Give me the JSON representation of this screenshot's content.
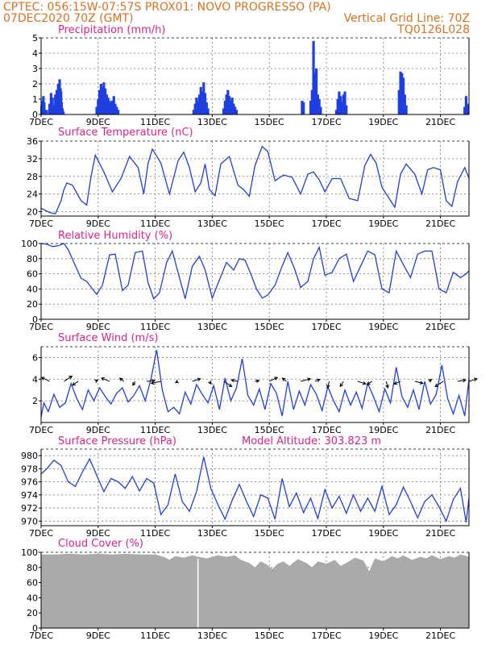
{
  "header": {
    "line1_left": "CPTEC:   056:15W-07:57S   PROX01: NOVO PROGRESSO (PA)",
    "line2_left": "07DEC2020 70Z (GMT)",
    "line2_right": "Vertical Grid Line: 70Z",
    "line3_right": "TQ0126L028"
  },
  "x_axis": {
    "tick_labels": [
      "7DEC",
      "9DEC",
      "11DEC",
      "13DEC",
      "15DEC",
      "17DEC",
      "19DEC",
      "21DEC"
    ],
    "tick_days": [
      0,
      2,
      4,
      6,
      8,
      10,
      12,
      14
    ],
    "range_days": [
      0,
      15
    ]
  },
  "chart_data": [
    {
      "type": "bar",
      "title": "Precipitation (mm/h)",
      "color": "#1f3fe0",
      "ylim": [
        0,
        5
      ],
      "yticks": [
        0,
        1,
        2,
        3,
        4,
        5
      ],
      "x": [
        0.02,
        0.05,
        0.08,
        0.11,
        0.2,
        0.3,
        0.35,
        0.4,
        0.45,
        0.5,
        0.55,
        0.6,
        0.62,
        0.65,
        0.68,
        0.7,
        0.72,
        0.75,
        0.78,
        1.95,
        2.0,
        2.05,
        2.1,
        2.15,
        2.2,
        2.25,
        2.3,
        2.35,
        2.4,
        2.45,
        2.5,
        2.55,
        2.6,
        2.65,
        2.7,
        5.35,
        5.4,
        5.45,
        5.5,
        5.55,
        5.6,
        5.65,
        5.7,
        5.75,
        5.8,
        5.85,
        6.4,
        6.45,
        6.5,
        6.55,
        6.6,
        6.65,
        6.7,
        6.75,
        6.8,
        6.85,
        9.15,
        9.2,
        9.45,
        9.5,
        9.55,
        9.6,
        9.65,
        9.7,
        9.75,
        9.8,
        10.35,
        10.4,
        10.45,
        10.5,
        10.55,
        10.6,
        10.65,
        10.7,
        12.55,
        12.6,
        12.65,
        12.7,
        12.75,
        12.8,
        14.85,
        14.9,
        14.95
      ],
      "values": [
        0.6,
        0.9,
        1.2,
        0.8,
        0.3,
        0.7,
        1.4,
        1.1,
        0.6,
        1.3,
        1.6,
        2.0,
        1.9,
        2.3,
        1.7,
        1.5,
        0.8,
        0.4,
        0.2,
        0.5,
        1.0,
        1.6,
        2.0,
        1.8,
        2.1,
        1.7,
        1.3,
        1.1,
        0.9,
        0.8,
        0.9,
        1.2,
        0.7,
        0.5,
        0.3,
        0.3,
        0.7,
        1.1,
        0.9,
        1.3,
        1.8,
        1.5,
        2.1,
        1.4,
        0.8,
        0.4,
        0.4,
        0.9,
        1.3,
        1.6,
        1.2,
        0.9,
        1.1,
        0.7,
        0.5,
        0.3,
        0.9,
        0.8,
        0.9,
        1.6,
        4.8,
        2.7,
        3.0,
        1.3,
        1.0,
        0.5,
        0.3,
        1.0,
        1.5,
        1.2,
        0.8,
        1.3,
        1.5,
        0.6,
        1.6,
        2.8,
        2.7,
        2.4,
        1.3,
        0.6,
        0.5,
        1.2,
        0.7
      ]
    },
    {
      "type": "line",
      "title": "Surface Temperature (nC)",
      "color": "#1f3fe0",
      "ylim": [
        19,
        36
      ],
      "yticks": [
        20,
        24,
        28,
        32,
        36
      ],
      "x": [
        0,
        0.3,
        0.5,
        0.7,
        0.8,
        0.9,
        1.1,
        1.4,
        1.6,
        1.75,
        1.9,
        2.2,
        2.5,
        2.8,
        3.1,
        3.4,
        3.6,
        3.75,
        3.9,
        4.2,
        4.5,
        4.8,
        5.0,
        5.2,
        5.4,
        5.6,
        5.75,
        5.9,
        6.1,
        6.3,
        6.6,
        6.9,
        7.1,
        7.3,
        7.5,
        7.75,
        7.95,
        8.2,
        8.5,
        8.8,
        9.1,
        9.35,
        9.55,
        9.75,
        9.95,
        10.2,
        10.5,
        10.8,
        11.1,
        11.35,
        11.55,
        11.75,
        11.95,
        12.2,
        12.4,
        12.6,
        12.8,
        13.1,
        13.35,
        13.55,
        13.75,
        14.0,
        14.2,
        14.4,
        14.6,
        14.85,
        15.0
      ],
      "values": [
        20.8,
        19.8,
        19.5,
        22.5,
        25,
        26.5,
        26,
        22.5,
        21.5,
        28,
        32.8,
        29,
        24.5,
        27.5,
        32.5,
        30,
        24,
        31,
        34.2,
        31,
        24,
        31.5,
        33.5,
        30,
        24.5,
        26.5,
        30.8,
        25,
        23.6,
        30.8,
        32.5,
        26,
        25,
        23.5,
        30.5,
        34.8,
        33.6,
        27,
        28.3,
        27.8,
        24,
        28.5,
        29,
        27.2,
        24.5,
        27.5,
        27.5,
        23,
        22.5,
        30.5,
        33,
        31,
        25.5,
        23,
        21,
        28.5,
        30.8,
        28.5,
        24,
        29.5,
        30,
        29.5,
        22.5,
        21.2,
        26.8,
        30,
        27.6
      ]
    },
    {
      "type": "line",
      "title": "Relative Humidity (%)",
      "color": "#1f3fe0",
      "ylim": [
        0,
        100
      ],
      "yticks": [
        0,
        20,
        40,
        60,
        80,
        100
      ],
      "x": [
        0,
        0.2,
        0.4,
        0.6,
        0.8,
        0.95,
        1.15,
        1.4,
        1.6,
        1.8,
        1.95,
        2.15,
        2.4,
        2.6,
        2.85,
        3.05,
        3.3,
        3.55,
        3.75,
        3.95,
        4.15,
        4.4,
        4.6,
        4.85,
        5.05,
        5.3,
        5.55,
        5.75,
        6.0,
        6.25,
        6.5,
        6.75,
        6.95,
        7.15,
        7.35,
        7.55,
        7.75,
        7.95,
        8.2,
        8.45,
        8.65,
        8.9,
        9.1,
        9.35,
        9.55,
        9.75,
        9.95,
        10.2,
        10.45,
        10.7,
        10.95,
        11.2,
        11.45,
        11.7,
        11.95,
        12.2,
        12.45,
        12.7,
        12.95,
        13.2,
        13.45,
        13.7,
        13.95,
        14.2,
        14.45,
        14.7,
        14.9,
        15.0
      ],
      "values": [
        100,
        99,
        96,
        97,
        100,
        92,
        75,
        54,
        50,
        40,
        33,
        45,
        85,
        86,
        38,
        45,
        88,
        90,
        48,
        27,
        35,
        75,
        90,
        55,
        27,
        70,
        83,
        65,
        28,
        52,
        75,
        65,
        80,
        78,
        60,
        40,
        28,
        32,
        45,
        70,
        88,
        65,
        42,
        50,
        80,
        95,
        58,
        62,
        80,
        86,
        50,
        70,
        90,
        85,
        40,
        35,
        90,
        72,
        55,
        86,
        90,
        90,
        40,
        35,
        62,
        55,
        60,
        64
      ]
    },
    {
      "type": "line",
      "title": "Surface Wind (m/s)",
      "color": "#1f3fe0",
      "ylim": [
        0,
        7
      ],
      "yticks": [
        2,
        4,
        6
      ],
      "x": [
        0,
        0.1,
        0.25,
        0.45,
        0.65,
        0.85,
        1.05,
        1.25,
        1.45,
        1.65,
        1.85,
        2.05,
        2.25,
        2.45,
        2.65,
        2.85,
        3.05,
        3.25,
        3.45,
        3.65,
        3.85,
        4.05,
        4.25,
        4.45,
        4.65,
        4.85,
        5.05,
        5.25,
        5.45,
        5.65,
        5.85,
        6.05,
        6.25,
        6.45,
        6.65,
        6.85,
        7.05,
        7.25,
        7.45,
        7.65,
        7.85,
        8.05,
        8.25,
        8.45,
        8.65,
        8.85,
        9.05,
        9.25,
        9.45,
        9.65,
        9.85,
        10.05,
        10.25,
        10.45,
        10.65,
        10.85,
        11.05,
        11.25,
        11.45,
        11.65,
        11.85,
        12.05,
        12.25,
        12.45,
        12.65,
        12.85,
        13.05,
        13.25,
        13.45,
        13.65,
        13.85,
        14.05,
        14.25,
        14.45,
        14.65,
        14.85,
        15.0
      ],
      "values": [
        0.5,
        1.8,
        1.0,
        2.6,
        1.4,
        1.8,
        3.6,
        2.2,
        1.2,
        3.0,
        2.0,
        3.2,
        2.4,
        1.7,
        2.7,
        3.2,
        1.9,
        2.5,
        3.4,
        2.0,
        4.0,
        6.7,
        3.0,
        1.0,
        1.4,
        0.8,
        2.8,
        1.7,
        3.5,
        2.6,
        1.8,
        3.4,
        1.2,
        4.1,
        2.0,
        3.2,
        5.9,
        2.5,
        1.6,
        3.1,
        1.2,
        3.6,
        2.7,
        0.6,
        3.8,
        1.2,
        2.9,
        1.6,
        3.5,
        2.6,
        1.1,
        3.3,
        2.0,
        1.0,
        3.0,
        1.6,
        2.8,
        1.3,
        3.6,
        2.4,
        1.0,
        3.1,
        1.8,
        5.1,
        2.4,
        1.4,
        3.0,
        1.2,
        3.8,
        1.7,
        2.6,
        5.3,
        2.2,
        0.8,
        2.5,
        0.6,
        4.0
      ]
    },
    {
      "type": "line",
      "title": "Surface Pressure (hPa)",
      "annotation": "Model Altitude: 303.823 m",
      "color": "#1f3fe0",
      "ylim": [
        969.3,
        981
      ],
      "yticks": [
        970,
        972,
        974,
        976,
        978,
        980
      ],
      "x": [
        0,
        0.2,
        0.45,
        0.7,
        0.95,
        1.2,
        1.45,
        1.7,
        1.95,
        2.2,
        2.45,
        2.7,
        2.95,
        3.2,
        3.45,
        3.7,
        3.95,
        4.2,
        4.45,
        4.7,
        4.95,
        5.2,
        5.45,
        5.7,
        5.95,
        6.2,
        6.45,
        6.7,
        6.95,
        7.2,
        7.45,
        7.7,
        7.95,
        8.2,
        8.45,
        8.7,
        8.95,
        9.2,
        9.45,
        9.7,
        9.95,
        10.2,
        10.45,
        10.7,
        10.95,
        11.2,
        11.45,
        11.7,
        11.95,
        12.2,
        12.45,
        12.7,
        12.95,
        13.2,
        13.45,
        13.7,
        13.95,
        14.2,
        14.45,
        14.7,
        14.9,
        15.0
      ],
      "values": [
        977.2,
        978.0,
        979.3,
        978.5,
        976.0,
        975.3,
        977.5,
        979.5,
        977.0,
        974.5,
        976.5,
        976.0,
        975.0,
        976.8,
        974.6,
        976.5,
        975.8,
        971.0,
        972.5,
        977.2,
        973.0,
        971.5,
        974.5,
        979.8,
        975.0,
        972.5,
        970.3,
        973.2,
        975.6,
        973.0,
        970.7,
        974.0,
        973.5,
        970.3,
        976.5,
        972.2,
        974.3,
        971.3,
        973.5,
        970.4,
        974.8,
        972.0,
        973.8,
        971.2,
        974.0,
        971.5,
        973.5,
        971.5,
        975.3,
        971.0,
        972.5,
        975.2,
        973.0,
        970.5,
        973.0,
        974.0,
        972.2,
        970.0,
        973.3,
        975.0,
        969.8,
        973.6
      ]
    },
    {
      "type": "area",
      "title": "Cloud Cover (%)",
      "color": "#aaaaaa",
      "ylim": [
        0,
        100
      ],
      "yticks": [
        0,
        20,
        40,
        60,
        80,
        100
      ],
      "x": [
        0,
        0.5,
        1.0,
        1.5,
        2.0,
        2.5,
        3.0,
        3.5,
        4.0,
        4.3,
        4.5,
        4.7,
        5.0,
        5.3,
        5.5,
        5.8,
        6.2,
        6.5,
        6.8,
        7.0,
        7.3,
        7.5,
        7.7,
        7.9,
        8.1,
        8.3,
        8.5,
        8.7,
        9.0,
        9.3,
        9.5,
        9.7,
        10.0,
        10.3,
        10.5,
        10.7,
        11.0,
        11.3,
        11.5,
        11.7,
        12.0,
        12.3,
        12.5,
        12.7,
        13.0,
        13.3,
        13.5,
        13.7,
        14.0,
        14.3,
        14.5,
        14.7,
        15.0
      ],
      "values": [
        97,
        97,
        98,
        97,
        98,
        97,
        98,
        97,
        97,
        94,
        90,
        95,
        93,
        96,
        94,
        92,
        96,
        94,
        96,
        90,
        86,
        80,
        88,
        84,
        78,
        85,
        88,
        82,
        91,
        86,
        80,
        88,
        85,
        90,
        82,
        86,
        93,
        89,
        75,
        92,
        88,
        95,
        92,
        96,
        90,
        94,
        92,
        96,
        91,
        95,
        93,
        97,
        94
      ]
    }
  ],
  "wind_vectors": {
    "x": [
      0.3,
      0.8,
      1.3,
      1.9,
      2.4,
      2.9,
      3.3,
      3.7,
      4.2,
      4.8,
      5.3,
      5.9,
      6.4,
      6.9,
      7.5,
      8.0,
      8.6,
      9.1,
      9.6,
      10.1,
      10.6,
      11.1,
      11.6,
      12.1,
      12.6,
      13.1,
      13.6,
      14.1,
      14.6,
      15.0
    ],
    "u": [
      -1,
      1,
      -0.7,
      0.3,
      -1,
      -0.5,
      -0.3,
      1,
      -1.2,
      -0.3,
      1,
      0.2,
      1,
      -0.8,
      0.5,
      1,
      -0.5,
      1.2,
      0.6,
      -0.2,
      -0.4,
      1,
      -0.6,
      0.2,
      -0.8,
      1,
      0.3,
      -1,
      1,
      1
    ],
    "v": [
      0.6,
      0.8,
      -0.6,
      0.2,
      0.5,
      0.5,
      -0.6,
      0.1,
      -0.3,
      -0.2,
      0.4,
      -0.4,
      -0.8,
      0.2,
      0.1,
      0.6,
      0.5,
      0.4,
      0.3,
      -1,
      -0.8,
      -0.4,
      -0.5,
      -1,
      -0.4,
      -0.3,
      0.3,
      -0.8,
      0.2,
      0.4
    ]
  }
}
